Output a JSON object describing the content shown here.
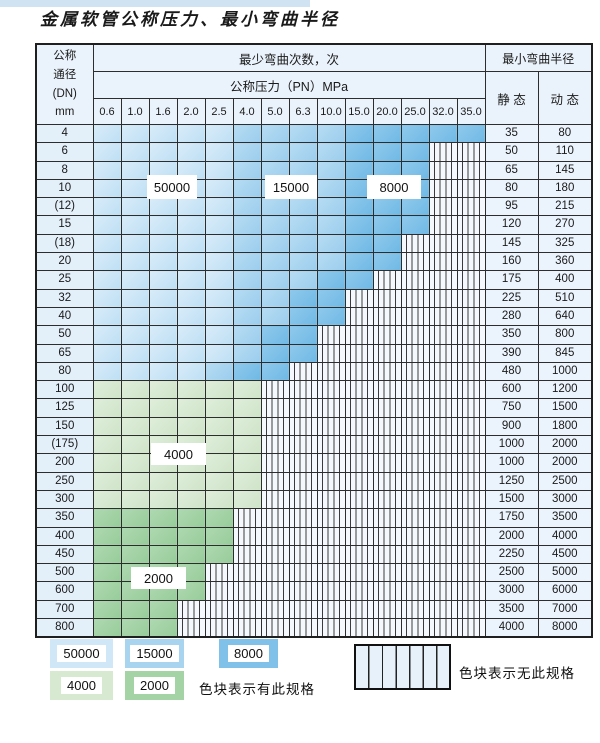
{
  "title": "金属软管公称压力、最小弯曲半径",
  "table": {
    "corner_header": {
      "line1": "公称",
      "line2": "通径",
      "line3": "(DN)",
      "line4": "mm"
    },
    "bend_cycles_header": "最少弯曲次数，次",
    "pressure_header": "公称压力（PN）MPa",
    "radius_header": "最小弯曲半径",
    "static_header": "静 态",
    "dynamic_header": "动 态",
    "pressure_columns": [
      "0.6",
      "1.0",
      "1.6",
      "2.0",
      "2.5",
      "4.0",
      "5.0",
      "6.3",
      "10.0",
      "15.0",
      "20.0",
      "25.0",
      "32.0",
      "35.0"
    ],
    "cell_legend_note": "L=50000 light blue, M=15000 medium blue, D=8000 dark blue, g=4000 light green, G=2000 medium green, x=no spec (hatched)",
    "rows": [
      {
        "dn": "4",
        "cells": "LLLLLMMMMDDDDD",
        "static": "35",
        "dynamic": "80"
      },
      {
        "dn": "6",
        "cells": "LLLLLMMMMDDDxx",
        "static": "50",
        "dynamic": "110"
      },
      {
        "dn": "8",
        "cells": "LLLLLMMMMDDDxx",
        "static": "65",
        "dynamic": "145"
      },
      {
        "dn": "10",
        "cells": "LLLLLMMMMDDDxx",
        "static": "80",
        "dynamic": "180"
      },
      {
        "dn": "(12)",
        "cells": "LLLLLMMMMDDDxx",
        "static": "95",
        "dynamic": "215"
      },
      {
        "dn": "15",
        "cells": "LLLLLMMMMDDDxx",
        "static": "120",
        "dynamic": "270"
      },
      {
        "dn": "(18)",
        "cells": "LLLLLMMMMDDxxx",
        "static": "145",
        "dynamic": "325"
      },
      {
        "dn": "20",
        "cells": "LLLLLMMMMDDxxx",
        "static": "160",
        "dynamic": "360"
      },
      {
        "dn": "25",
        "cells": "LLLLLMMMDDxxxx",
        "static": "175",
        "dynamic": "400"
      },
      {
        "dn": "32",
        "cells": "LLLLLMMDDxxxxx",
        "static": "225",
        "dynamic": "510"
      },
      {
        "dn": "40",
        "cells": "LLLLLMMDDxxxxx",
        "static": "280",
        "dynamic": "640"
      },
      {
        "dn": "50",
        "cells": "LLLLLMDDxxxxxx",
        "static": "350",
        "dynamic": "800"
      },
      {
        "dn": "65",
        "cells": "LLLLLMDDxxxxxx",
        "static": "390",
        "dynamic": "845"
      },
      {
        "dn": "80",
        "cells": "LLLLMDDxxxxxxx",
        "static": "480",
        "dynamic": "1000"
      },
      {
        "dn": "100",
        "cells": "ggggggxxxxxxxx",
        "static": "600",
        "dynamic": "1200"
      },
      {
        "dn": "125",
        "cells": "ggggggxxxxxxxx",
        "static": "750",
        "dynamic": "1500"
      },
      {
        "dn": "150",
        "cells": "ggggggxxxxxxxx",
        "static": "900",
        "dynamic": "1800"
      },
      {
        "dn": "(175)",
        "cells": "ggggggxxxxxxxx",
        "static": "1000",
        "dynamic": "2000"
      },
      {
        "dn": "200",
        "cells": "ggggggxxxxxxxx",
        "static": "1000",
        "dynamic": "2000"
      },
      {
        "dn": "250",
        "cells": "ggggggxxxxxxxx",
        "static": "1250",
        "dynamic": "2500"
      },
      {
        "dn": "300",
        "cells": "ggggggxxxxxxxx",
        "static": "1500",
        "dynamic": "3000"
      },
      {
        "dn": "350",
        "cells": "GGGGGxxxxxxxxx",
        "static": "1750",
        "dynamic": "3500"
      },
      {
        "dn": "400",
        "cells": "GGGGGxxxxxxxxx",
        "static": "2000",
        "dynamic": "4000"
      },
      {
        "dn": "450",
        "cells": "GGGGGxxxxxxxxx",
        "static": "2250",
        "dynamic": "4500"
      },
      {
        "dn": "500",
        "cells": "GGGGxxxxxxxxxx",
        "static": "2500",
        "dynamic": "5000"
      },
      {
        "dn": "600",
        "cells": "GGGGxxxxxxxxxx",
        "static": "3000",
        "dynamic": "6000"
      },
      {
        "dn": "700",
        "cells": "GGGxxxxxxxxxxx",
        "static": "3500",
        "dynamic": "7000"
      },
      {
        "dn": "800",
        "cells": "GGGxxxxxxxxxxx",
        "static": "4000",
        "dynamic": "8000"
      }
    ]
  },
  "overlay_labels": {
    "cycles_50000": "50000",
    "cycles_15000": "15000",
    "cycles_8000": "8000",
    "cycles_4000": "4000",
    "cycles_2000": "2000"
  },
  "legend": {
    "items": [
      {
        "value": "50000",
        "color": "#cfe7f6"
      },
      {
        "value": "15000",
        "color": "#a9d4ef"
      },
      {
        "value": "8000",
        "color": "#7fc1e8"
      },
      {
        "value": "4000",
        "color": "#d8e9d2"
      },
      {
        "value": "2000",
        "color": "#a4d3a6"
      }
    ],
    "has_spec_text": "色块表示有此规格",
    "no_spec_text": "色块表示无此规格"
  },
  "colors": {
    "blue_light": "#bedff4",
    "blue_medium": "#9bcded",
    "blue_dark": "#6fb9e5",
    "green_light": "#cfe4c9",
    "green_medium": "#97cc9a",
    "header_bg": "#eaf3fb",
    "dn_column_bg": "#e3eff9",
    "radius_cells_bg": "#ebf4fc",
    "grid_border": "#2d2d2d"
  }
}
